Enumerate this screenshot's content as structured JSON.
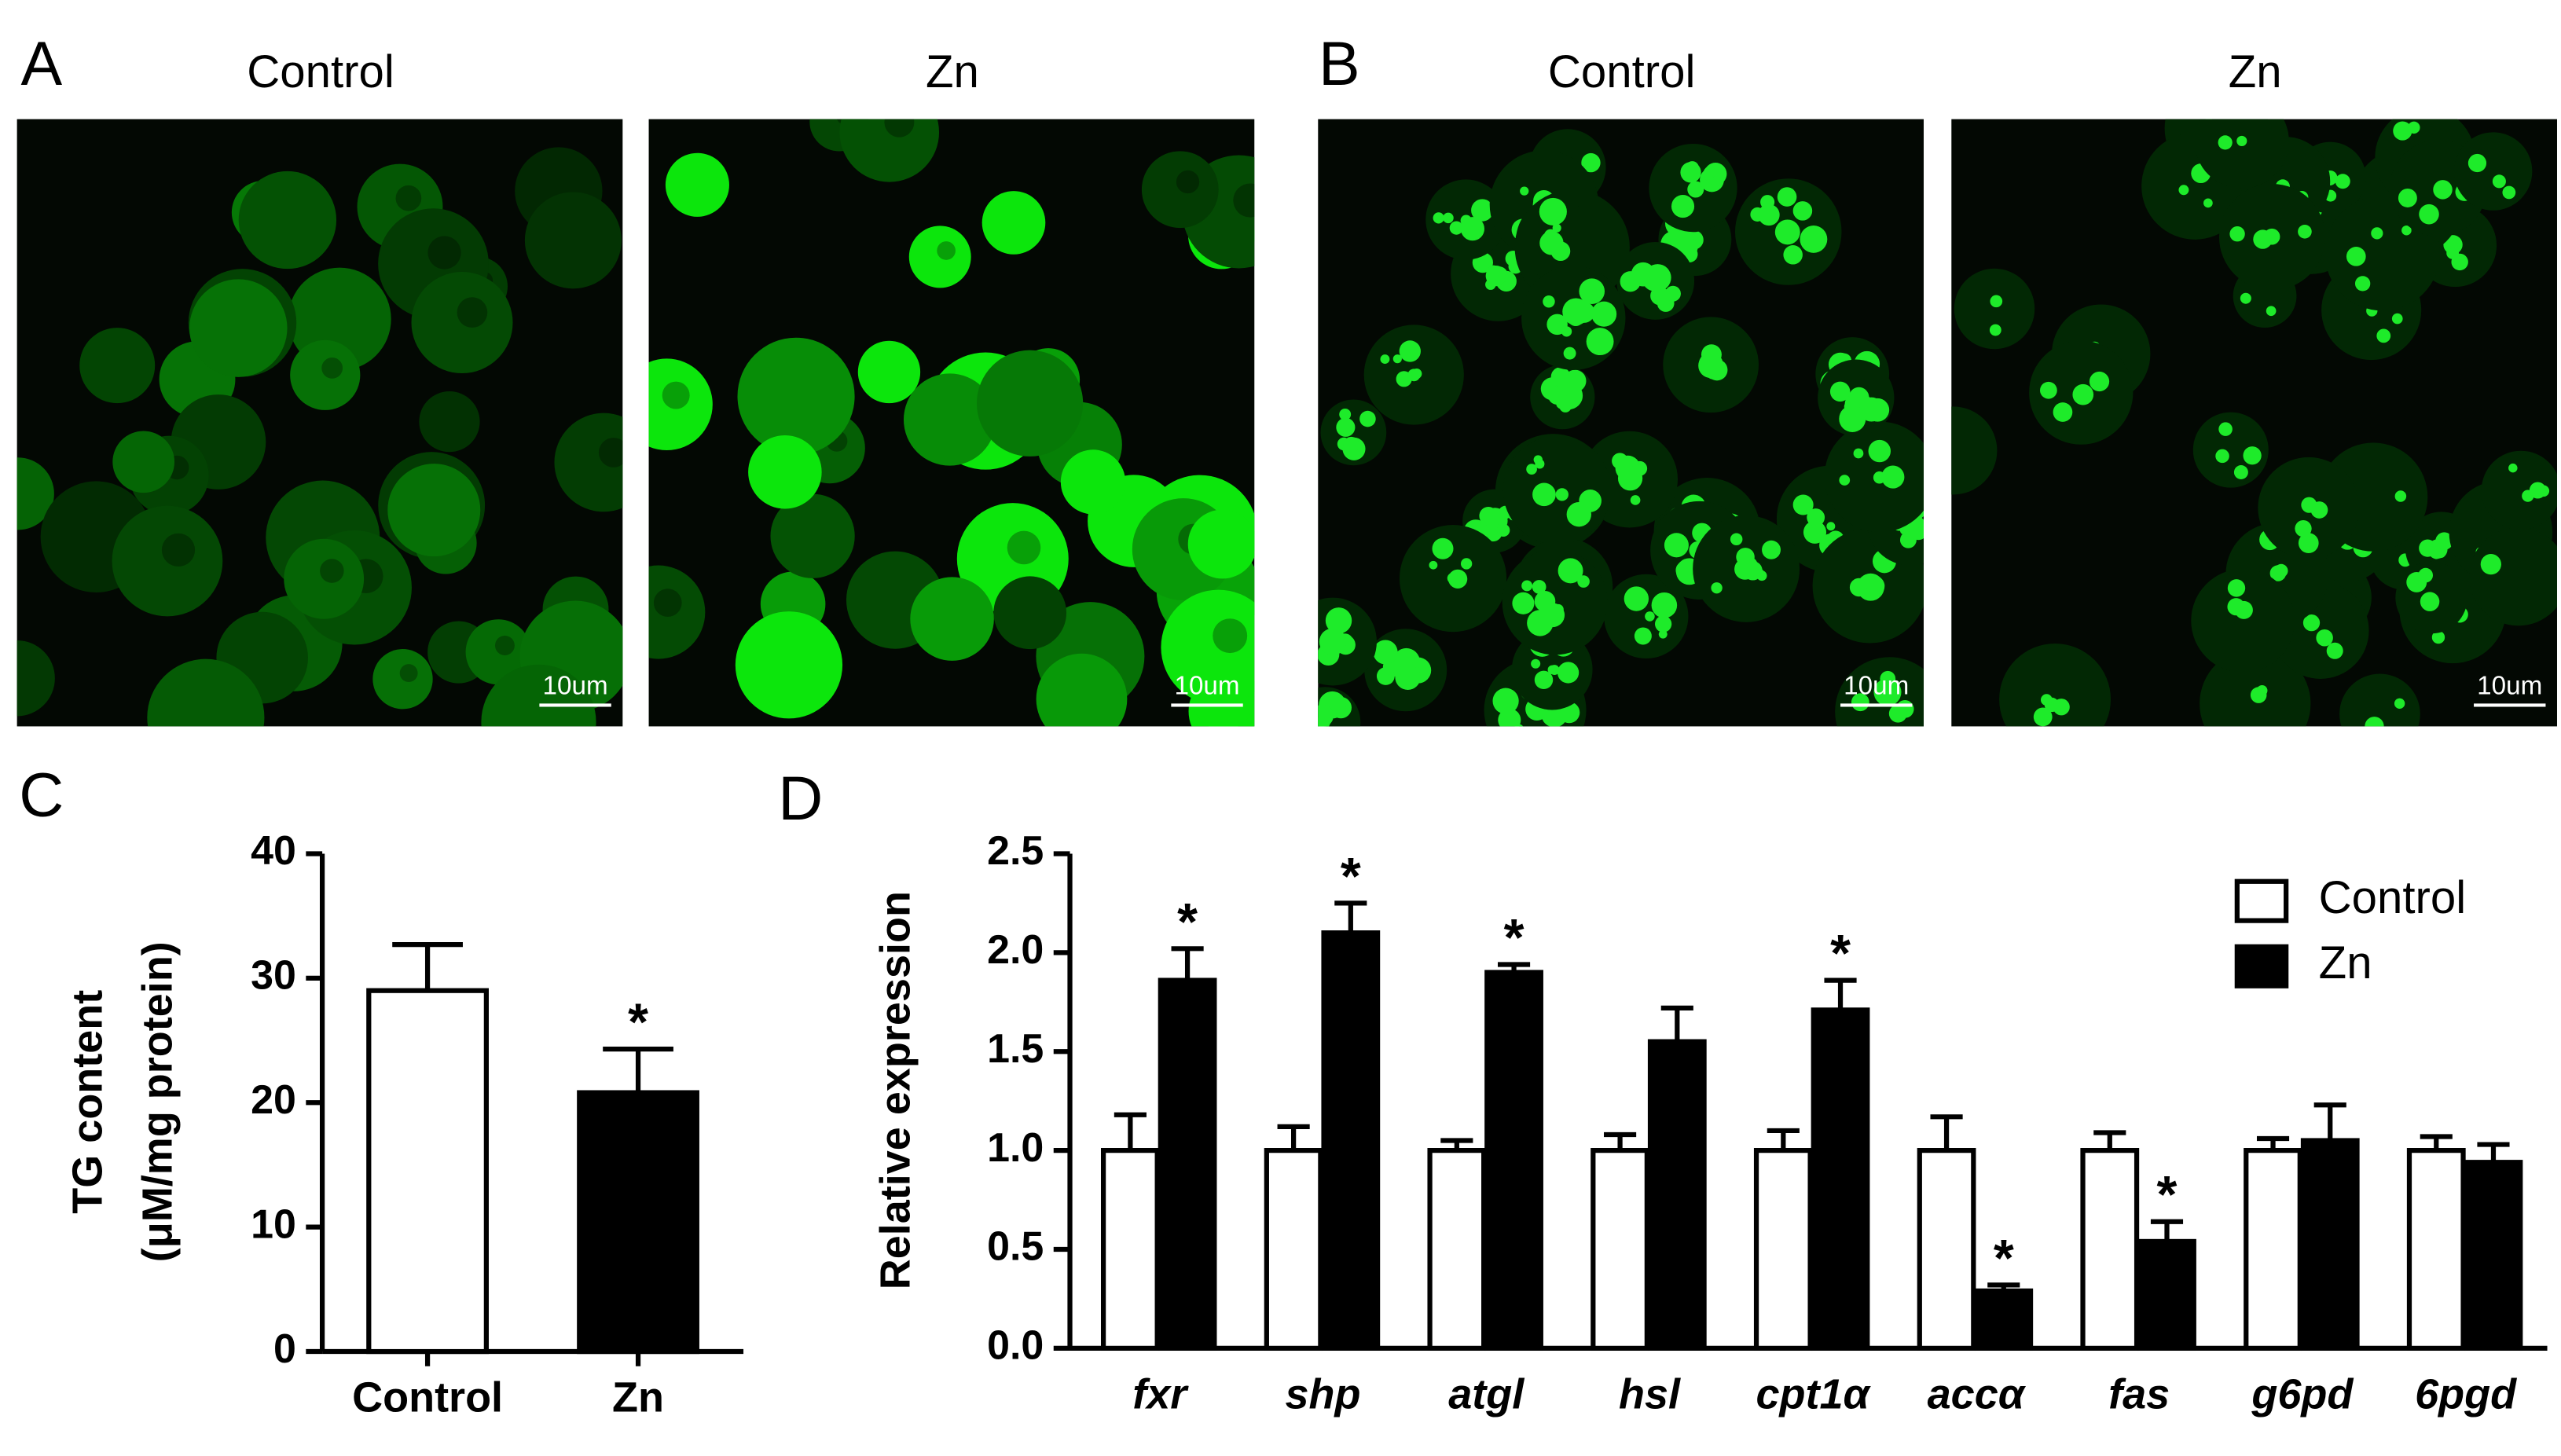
{
  "panels": [
    "A",
    "B",
    "C",
    "D"
  ],
  "micrographs": [
    {
      "title": "Control",
      "scale_bar": "10um"
    },
    {
      "title": "Zn",
      "scale_bar": "10um"
    },
    {
      "title": "Control",
      "scale_bar": "10um"
    },
    {
      "title": "Zn",
      "scale_bar": "10um"
    }
  ],
  "chart_data": [
    {
      "type": "bar",
      "ylabel": "TG content",
      "ylabel_sub": "(μM/mg protein)",
      "categories": [
        "Control",
        "Zn"
      ],
      "values": [
        29,
        20.8
      ],
      "errors": [
        3.7,
        3.5
      ],
      "colors": [
        "#ffffff",
        "#000000"
      ],
      "significance": [
        null,
        "*"
      ],
      "ylim": [
        0,
        40
      ],
      "yticks": [
        0,
        10,
        20,
        30,
        40
      ]
    },
    {
      "type": "grouped-bar",
      "ylabel": "Relative expression",
      "categories": [
        "fxr",
        "shp",
        "atgl",
        "hsl",
        "cpt1α",
        "accα",
        "fas",
        "g6pd",
        "6pgd"
      ],
      "series": [
        {
          "name": "Control",
          "color": "#ffffff",
          "values": [
            1,
            1,
            1,
            1,
            1,
            1,
            1,
            1,
            1
          ],
          "errors": [
            0.18,
            0.12,
            0.05,
            0.08,
            0.1,
            0.17,
            0.09,
            0.06,
            0.07
          ],
          "significance": [
            null,
            null,
            null,
            null,
            null,
            null,
            null,
            null,
            null
          ]
        },
        {
          "name": "Zn",
          "color": "#000000",
          "values": [
            1.86,
            2.1,
            1.9,
            1.55,
            1.71,
            0.29,
            0.54,
            1.05,
            0.94
          ],
          "errors": [
            0.16,
            0.15,
            0.04,
            0.17,
            0.15,
            0.03,
            0.1,
            0.18,
            0.09
          ],
          "significance": [
            "*",
            "*",
            "*",
            null,
            "*",
            "*",
            "*",
            null,
            null
          ]
        }
      ],
      "ylim": [
        0,
        2.5
      ],
      "yticks": [
        {
          "value": 0,
          "label": "0.0"
        },
        0.5,
        {
          "value": 1,
          "label": "1.0"
        },
        1.5,
        {
          "value": 2,
          "label": "2.0"
        },
        2.5
      ],
      "legend": "top-right"
    }
  ]
}
